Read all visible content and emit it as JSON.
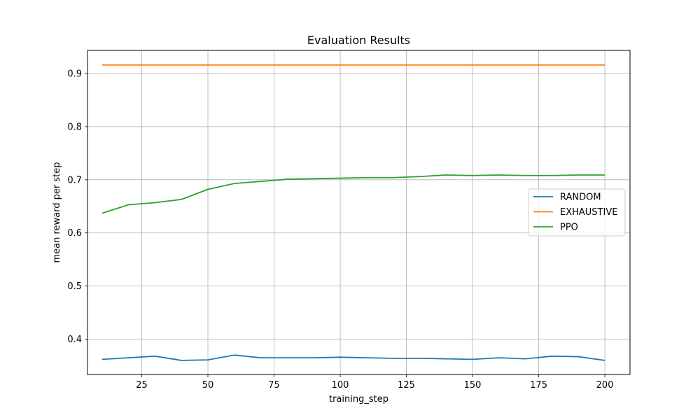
{
  "chart_data": {
    "type": "line",
    "title": "Evaluation Results",
    "xlabel": "training_step",
    "ylabel": "mean reward per step",
    "xlim": [
      4.5,
      209.5
    ],
    "ylim": [
      0.3335,
      0.9435
    ],
    "xticks": [
      25,
      50,
      75,
      100,
      125,
      150,
      175,
      200
    ],
    "yticks": [
      0.4,
      0.5,
      0.6,
      0.7,
      0.8,
      0.9
    ],
    "xtick_labels": [
      "25",
      "50",
      "75",
      "100",
      "125",
      "150",
      "175",
      "200"
    ],
    "ytick_labels": [
      "0.4",
      "0.5",
      "0.6",
      "0.7",
      "0.8",
      "0.9"
    ],
    "grid": true,
    "legend_position": "center-right",
    "x": [
      10,
      20,
      30,
      40,
      50,
      60,
      70,
      80,
      90,
      100,
      110,
      120,
      130,
      140,
      150,
      160,
      170,
      180,
      190,
      200
    ],
    "series": [
      {
        "name": "RANDOM",
        "color": "#1f77b4",
        "values": [
          0.362,
          0.365,
          0.368,
          0.36,
          0.361,
          0.37,
          0.365,
          0.365,
          0.365,
          0.366,
          0.365,
          0.364,
          0.364,
          0.363,
          0.362,
          0.365,
          0.363,
          0.368,
          0.367,
          0.36
        ]
      },
      {
        "name": "EXHAUSTIVE",
        "color": "#ff7f0e",
        "values": [
          0.916,
          0.916,
          0.916,
          0.916,
          0.916,
          0.916,
          0.916,
          0.916,
          0.916,
          0.916,
          0.916,
          0.916,
          0.916,
          0.916,
          0.916,
          0.916,
          0.916,
          0.916,
          0.916,
          0.916
        ]
      },
      {
        "name": "PPO",
        "color": "#2ca02c",
        "values": [
          0.637,
          0.653,
          0.657,
          0.663,
          0.682,
          0.693,
          0.697,
          0.701,
          0.702,
          0.703,
          0.704,
          0.704,
          0.706,
          0.709,
          0.708,
          0.709,
          0.708,
          0.708,
          0.709,
          0.709
        ]
      }
    ]
  }
}
